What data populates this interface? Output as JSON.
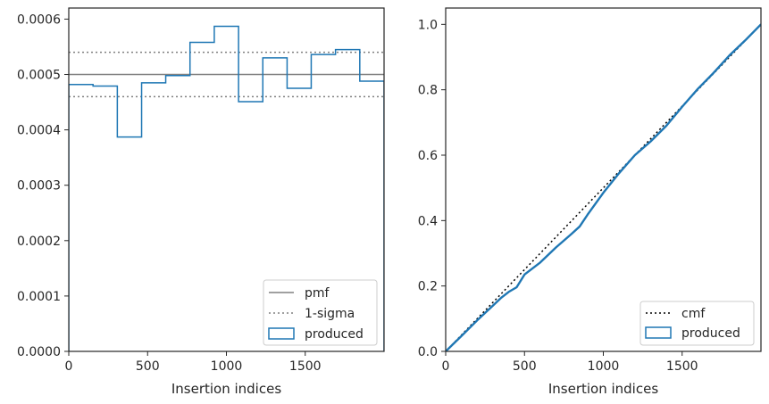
{
  "chart_data": [
    {
      "type": "histogram",
      "xlabel": "Insertion indices",
      "ylabel": "",
      "xlim": [
        0,
        2000
      ],
      "ylim": [
        0,
        0.00062
      ],
      "xticks": [
        {
          "value": 0,
          "label": "0"
        },
        {
          "value": 500,
          "label": "500"
        },
        {
          "value": 1000,
          "label": "1000"
        },
        {
          "value": 1500,
          "label": "1500"
        }
      ],
      "yticks": [
        {
          "value": 0,
          "label": "0.0000"
        },
        {
          "value": 0.0001,
          "label": "0.0001"
        },
        {
          "value": 0.0002,
          "label": "0.0002"
        },
        {
          "value": 0.0003,
          "label": "0.0003"
        },
        {
          "value": 0.0004,
          "label": "0.0004"
        },
        {
          "value": 0.0005,
          "label": "0.0005"
        },
        {
          "value": 0.0006,
          "label": "0.0006"
        }
      ],
      "bin_edges": [
        0,
        154,
        308,
        462,
        615,
        769,
        923,
        1077,
        1231,
        1385,
        1538,
        1692,
        1846,
        2000
      ],
      "series": [
        {
          "name": "pmf",
          "kind": "hline",
          "y": 0.0005,
          "color": "#808080",
          "style": "solid"
        },
        {
          "name": "1-sigma",
          "kind": "hlines",
          "y": [
            0.00054,
            0.00046
          ],
          "color": "#808080",
          "style": "dotted"
        },
        {
          "name": "produced",
          "kind": "step",
          "color": "#1f77b4",
          "values": [
            0.000482,
            0.000479,
            0.000387,
            0.000485,
            0.000498,
            0.000558,
            0.000587,
            0.000451,
            0.00053,
            0.000475,
            0.000536,
            0.000545,
            0.000488
          ]
        }
      ],
      "legend": {
        "placement": "lower right",
        "entries": [
          "pmf",
          "1-sigma",
          "produced"
        ]
      }
    },
    {
      "type": "line",
      "xlabel": "Insertion indices",
      "ylabel": "",
      "xlim": [
        0,
        2000
      ],
      "ylim": [
        0,
        1.05
      ],
      "xticks": [
        {
          "value": 0,
          "label": "0"
        },
        {
          "value": 500,
          "label": "500"
        },
        {
          "value": 1000,
          "label": "1000"
        },
        {
          "value": 1500,
          "label": "1500"
        }
      ],
      "yticks": [
        {
          "value": 0,
          "label": "0.0"
        },
        {
          "value": 0.2,
          "label": "0.2"
        },
        {
          "value": 0.4,
          "label": "0.4"
        },
        {
          "value": 0.6,
          "label": "0.6"
        },
        {
          "value": 0.8,
          "label": "0.8"
        },
        {
          "value": 1.0,
          "label": "1.0"
        }
      ],
      "series": [
        {
          "name": "cmf",
          "color": "#000000",
          "style": "dotted",
          "x": [
            0,
            2000
          ],
          "y": [
            0,
            1.0
          ]
        },
        {
          "name": "produced",
          "color": "#1f77b4",
          "style": "step",
          "x": [
            0,
            100,
            200,
            300,
            350,
            400,
            450,
            500,
            600,
            700,
            800,
            850,
            900,
            1000,
            1100,
            1200,
            1300,
            1400,
            1500,
            1600,
            1700,
            1800,
            1900,
            2000
          ],
          "y": [
            0,
            0.047,
            0.095,
            0.14,
            0.163,
            0.182,
            0.196,
            0.235,
            0.272,
            0.318,
            0.36,
            0.382,
            0.418,
            0.485,
            0.545,
            0.6,
            0.642,
            0.69,
            0.748,
            0.803,
            0.852,
            0.905,
            0.951,
            1.0
          ]
        }
      ],
      "legend": {
        "placement": "lower right",
        "entries": [
          "cmf",
          "produced"
        ]
      }
    }
  ]
}
